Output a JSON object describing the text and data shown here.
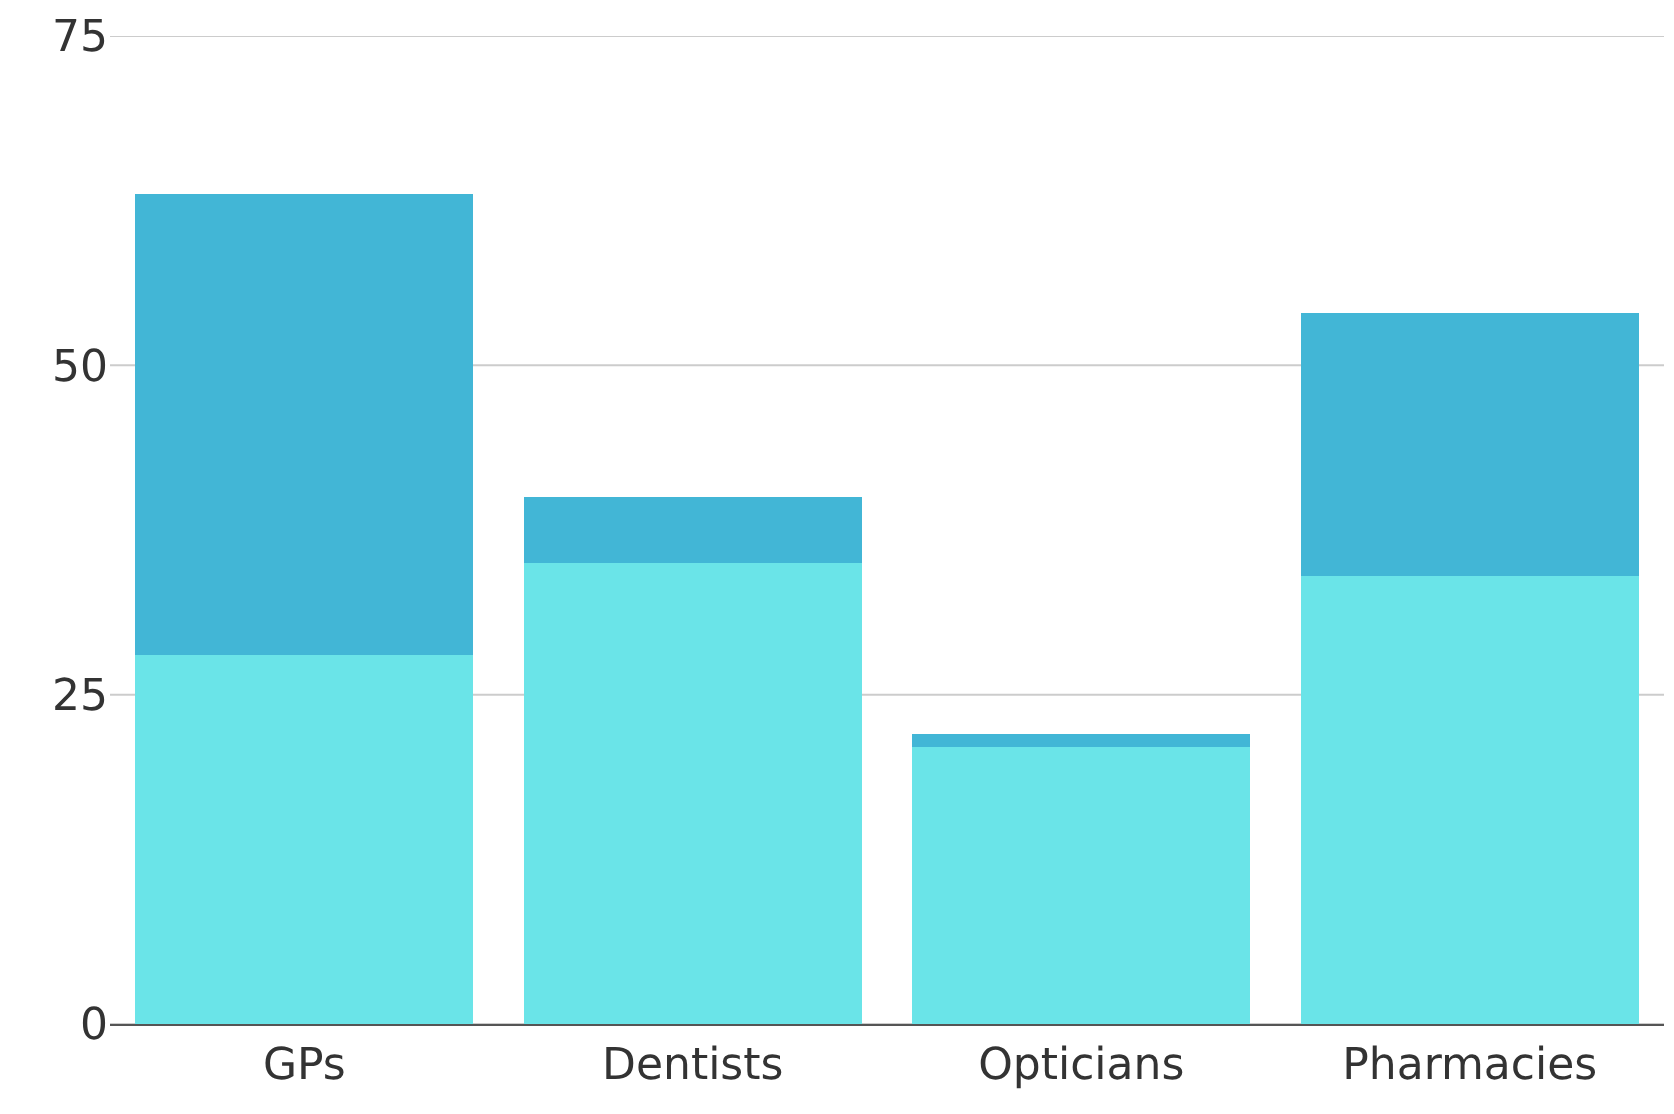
{
  "chart_data": {
    "type": "bar",
    "stacked": true,
    "categories": [
      "GPs",
      "Dentists",
      "Opticians",
      "Pharmacies"
    ],
    "series": [
      {
        "color": "#6ae4e8",
        "values": [
          28,
          35,
          21,
          34
        ]
      },
      {
        "color": "#42b6d6",
        "values": [
          35,
          5,
          1,
          20
        ]
      }
    ],
    "ylim": [
      0,
      75
    ],
    "yticks": [
      0,
      25,
      50,
      75
    ],
    "grid": "y"
  }
}
